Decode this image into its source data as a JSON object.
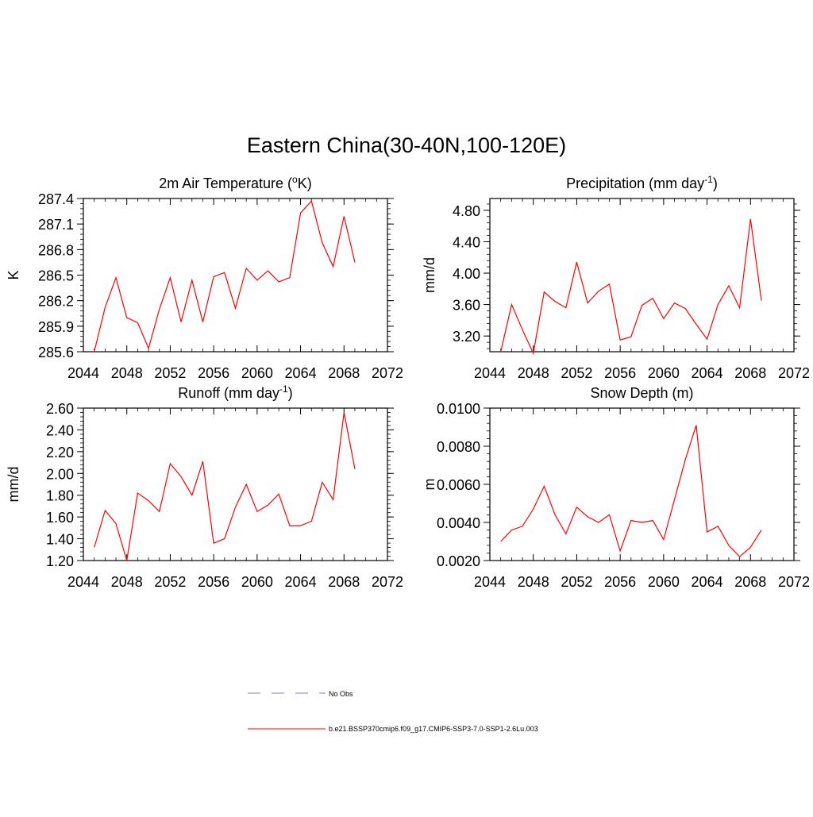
{
  "main_title": "Eastern China(30-40N,100-120E)",
  "legend": {
    "obs_label": "No Obs",
    "obs_color": "#9999dd",
    "model_label": "b.e21.BSSP370cmip6.f09_g17.CMIP6-SSP3-7.0-SSP1-2.6Lu.003",
    "model_color": "#ff0000"
  },
  "chart_data": [
    {
      "type": "line",
      "title": "2m Air Temperature (",
      "title_sup": "o",
      "title_after": "K)",
      "ylabel": "K",
      "xlim": [
        2044,
        2072
      ],
      "ylim": [
        285.6,
        287.4
      ],
      "xticks": [
        2044,
        2048,
        2052,
        2056,
        2060,
        2064,
        2068,
        2072
      ],
      "xticklabels": [
        "2044",
        "2048",
        "2052",
        "2056",
        "2060",
        "2064",
        "2068",
        "2072"
      ],
      "yticks": [
        285.6,
        285.9,
        286.2,
        286.5,
        286.8,
        287.1,
        287.4
      ],
      "yticklabels": [
        "285.6",
        "285.9",
        "286.2",
        "286.5",
        "286.8",
        "287.1",
        "287.4"
      ],
      "series": [
        {
          "x": [
            2045,
            2046,
            2047,
            2048,
            2049,
            2050,
            2051,
            2052,
            2053,
            2054,
            2055,
            2056,
            2057,
            2058,
            2059,
            2060,
            2061,
            2062,
            2063,
            2064,
            2065,
            2066,
            2067,
            2068,
            2069
          ],
          "values": [
            285.6,
            286.12,
            286.47,
            286.0,
            285.94,
            285.64,
            286.1,
            286.47,
            285.95,
            286.44,
            285.95,
            286.48,
            286.53,
            286.11,
            286.58,
            286.44,
            286.55,
            286.42,
            286.47,
            287.23,
            287.37,
            286.88,
            286.6,
            287.19,
            286.65
          ]
        }
      ]
    },
    {
      "type": "line",
      "title": "Precipitation (mm day",
      "title_sup": "-1",
      "title_after": ")",
      "ylabel": "mm/d",
      "xlim": [
        2044,
        2072
      ],
      "ylim": [
        3.0,
        4.95
      ],
      "xticks": [
        2044,
        2048,
        2052,
        2056,
        2060,
        2064,
        2068,
        2072
      ],
      "xticklabels": [
        "2044",
        "2048",
        "2052",
        "2056",
        "2060",
        "2064",
        "2068",
        "2072"
      ],
      "yticks": [
        3.2,
        3.6,
        4.0,
        4.4,
        4.8
      ],
      "yticklabels": [
        "3.20",
        "3.60",
        "4.00",
        "4.40",
        "4.80"
      ],
      "series": [
        {
          "x": [
            2045,
            2046,
            2047,
            2048,
            2049,
            2050,
            2051,
            2052,
            2053,
            2054,
            2055,
            2056,
            2057,
            2058,
            2059,
            2060,
            2061,
            2062,
            2063,
            2064,
            2065,
            2066,
            2067,
            2068,
            2069
          ],
          "values": [
            3.0,
            3.6,
            3.28,
            2.98,
            3.76,
            3.64,
            3.56,
            4.14,
            3.62,
            3.77,
            3.86,
            3.15,
            3.19,
            3.59,
            3.68,
            3.42,
            3.62,
            3.55,
            3.35,
            3.16,
            3.6,
            3.84,
            3.56,
            4.69,
            3.65
          ]
        }
      ]
    },
    {
      "type": "line",
      "title": "Runoff (mm day",
      "title_sup": "-1",
      "title_after": ")",
      "ylabel": "mm/d",
      "xlim": [
        2044,
        2072
      ],
      "ylim": [
        1.2,
        2.6
      ],
      "xticks": [
        2044,
        2048,
        2052,
        2056,
        2060,
        2064,
        2068,
        2072
      ],
      "xticklabels": [
        "2044",
        "2048",
        "2052",
        "2056",
        "2060",
        "2064",
        "2068",
        "2072"
      ],
      "yticks": [
        1.2,
        1.4,
        1.6,
        1.8,
        2.0,
        2.2,
        2.4,
        2.6
      ],
      "yticklabels": [
        "1.20",
        "1.40",
        "1.60",
        "1.80",
        "2.00",
        "2.20",
        "2.40",
        "2.60"
      ],
      "series": [
        {
          "x": [
            2045,
            2046,
            2047,
            2048,
            2049,
            2050,
            2051,
            2052,
            2053,
            2054,
            2055,
            2056,
            2057,
            2058,
            2059,
            2060,
            2061,
            2062,
            2063,
            2064,
            2065,
            2066,
            2067,
            2068,
            2069
          ],
          "values": [
            1.32,
            1.66,
            1.54,
            1.2,
            1.82,
            1.75,
            1.65,
            2.09,
            1.97,
            1.8,
            2.11,
            1.36,
            1.4,
            1.69,
            1.9,
            1.65,
            1.71,
            1.81,
            1.52,
            1.52,
            1.56,
            1.92,
            1.76,
            2.56,
            2.04
          ]
        }
      ]
    },
    {
      "type": "line",
      "title": "Snow Depth (m)",
      "title_sup": "",
      "title_after": "",
      "ylabel": "m",
      "xlim": [
        2044,
        2072
      ],
      "ylim": [
        0.002,
        0.01
      ],
      "xticks": [
        2044,
        2048,
        2052,
        2056,
        2060,
        2064,
        2068,
        2072
      ],
      "xticklabels": [
        "2044",
        "2048",
        "2052",
        "2056",
        "2060",
        "2064",
        "2068",
        "2072"
      ],
      "yticks": [
        0.002,
        0.004,
        0.006,
        0.008,
        0.01
      ],
      "yticklabels": [
        "0.0020",
        "0.0040",
        "0.0060",
        "0.0080",
        "0.0100"
      ],
      "series": [
        {
          "x": [
            2045,
            2046,
            2047,
            2048,
            2049,
            2050,
            2051,
            2052,
            2053,
            2054,
            2055,
            2056,
            2057,
            2058,
            2059,
            2060,
            2061,
            2062,
            2063,
            2064,
            2065,
            2066,
            2067,
            2068,
            2069
          ],
          "values": [
            0.003,
            0.0036,
            0.0038,
            0.0047,
            0.0059,
            0.0044,
            0.0034,
            0.0048,
            0.0043,
            0.004,
            0.0044,
            0.0025,
            0.0041,
            0.004,
            0.0041,
            0.0031,
            0.0052,
            0.0073,
            0.0091,
            0.0035,
            0.0038,
            0.0028,
            0.0022,
            0.0027,
            0.0036
          ]
        }
      ]
    }
  ]
}
